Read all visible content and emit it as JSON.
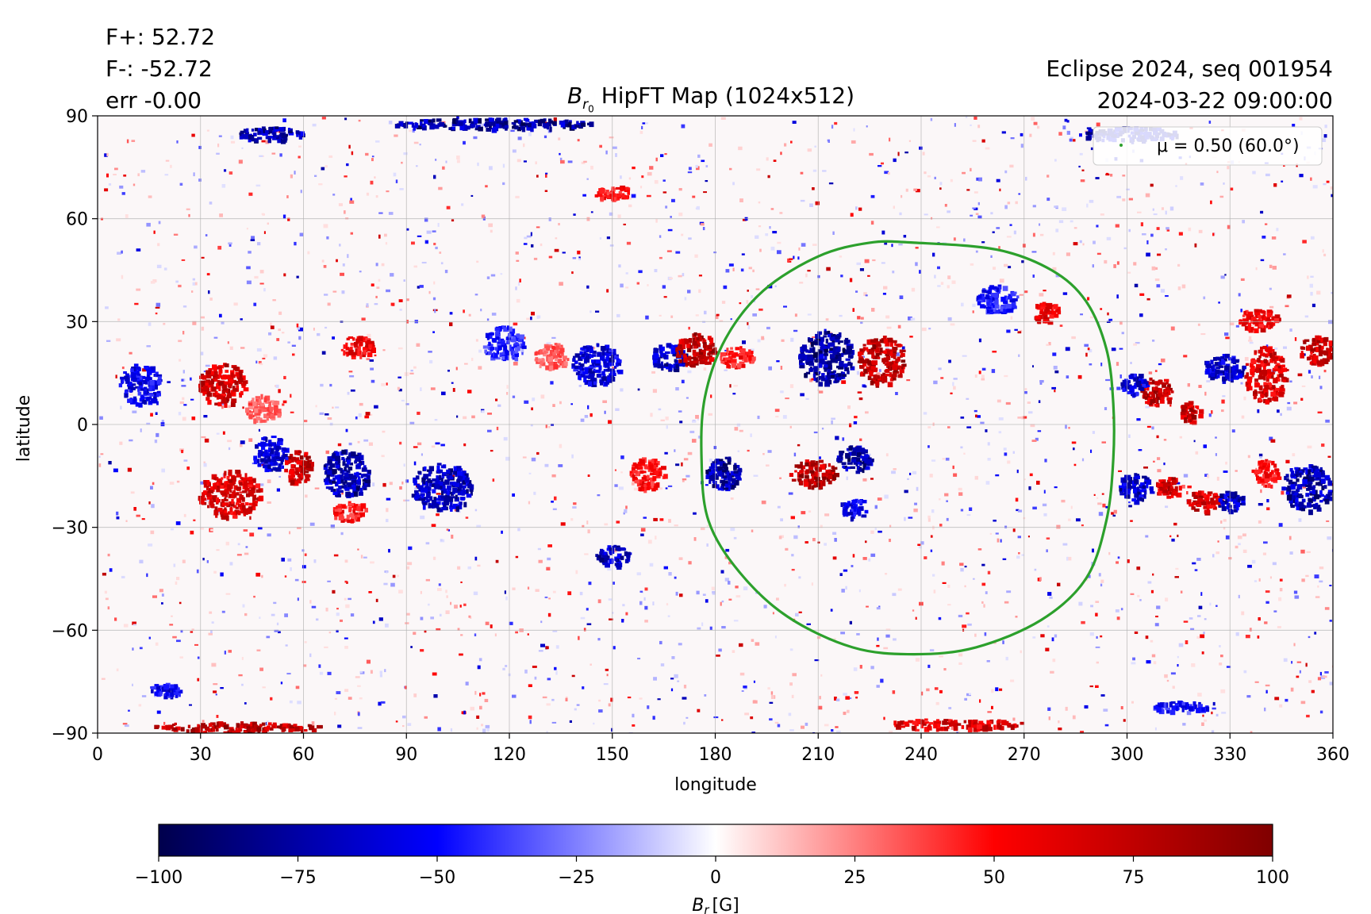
{
  "header": {
    "stats": [
      "F+: 52.72",
      "F-: -52.72",
      "err -0.00"
    ],
    "title_main": "HipFT Map (1024x512)",
    "title_symbol": "B",
    "title_subscript": "r",
    "title_subsubscript": "0",
    "right_line1": "Eclipse 2024, seq 001954",
    "right_line2": "2024-03-22 09:00:00"
  },
  "chart_data": {
    "type": "heatmap",
    "title": "B_r0 HipFT Map (1024x512)",
    "xlabel": "longitude",
    "ylabel": "latitude",
    "xlim": [
      0,
      360
    ],
    "ylim": [
      -90,
      90
    ],
    "xticks": [
      0,
      30,
      60,
      90,
      120,
      150,
      180,
      210,
      240,
      270,
      300,
      330,
      360
    ],
    "yticks": [
      -90,
      -60,
      -30,
      0,
      30,
      60,
      90
    ],
    "grid": true,
    "legend": {
      "position": "top-right",
      "entries": [
        {
          "label": "μ = 0.50 (60.0°)",
          "color": "#2ca02c"
        }
      ]
    },
    "mu_contour": {
      "label": "μ = 0.50 (60.0°)",
      "color": "#2ca02c",
      "points": [
        [
          238,
          53
        ],
        [
          262,
          51
        ],
        [
          278,
          45
        ],
        [
          288,
          36
        ],
        [
          294,
          22
        ],
        [
          296,
          6
        ],
        [
          296,
          -10
        ],
        [
          294,
          -28
        ],
        [
          288,
          -45
        ],
        [
          275,
          -57
        ],
        [
          256,
          -65
        ],
        [
          238,
          -67
        ],
        [
          220,
          -65
        ],
        [
          201,
          -56
        ],
        [
          187,
          -43
        ],
        [
          178,
          -28
        ],
        [
          176,
          -10
        ],
        [
          177,
          8
        ],
        [
          183,
          25
        ],
        [
          194,
          39
        ],
        [
          210,
          49
        ],
        [
          225,
          53
        ],
        [
          238,
          53
        ]
      ]
    },
    "colorbar": {
      "cmap": "seismic",
      "label_symbol": "B",
      "label_subscript": "r",
      "label_unit": "[G]",
      "range": [
        -100,
        100
      ],
      "ticks": [
        -100,
        -75,
        -50,
        -25,
        0,
        25,
        50,
        75,
        100
      ],
      "colors": [
        "#00004c",
        "#0000ff",
        "#ffffff",
        "#ff0000",
        "#800000"
      ]
    },
    "regions": [
      {
        "lon": 36,
        "lat": 12,
        "rlon": 7,
        "rlat": 6,
        "value": 85
      },
      {
        "lon": 12,
        "lat": 12,
        "rlon": 6,
        "rlat": 6,
        "value": -70
      },
      {
        "lon": 48,
        "lat": 5,
        "rlon": 5,
        "rlat": 4,
        "value": 40
      },
      {
        "lon": 38,
        "lat": -20,
        "rlon": 9,
        "rlat": 7,
        "value": 80
      },
      {
        "lon": 58,
        "lat": -12,
        "rlon": 4,
        "rlat": 5,
        "value": 90
      },
      {
        "lon": 50,
        "lat": -8,
        "rlon": 5,
        "rlat": 5,
        "value": -75
      },
      {
        "lon": 72,
        "lat": -14,
        "rlon": 7,
        "rlat": 7,
        "value": -90
      },
      {
        "lon": 73,
        "lat": -25,
        "rlon": 5,
        "rlat": 3,
        "value": 60
      },
      {
        "lon": 75,
        "lat": 23,
        "rlon": 5,
        "rlat": 3,
        "value": 70
      },
      {
        "lon": 100,
        "lat": -18,
        "rlon": 9,
        "rlat": 7,
        "value": -85
      },
      {
        "lon": 118,
        "lat": 24,
        "rlon": 6,
        "rlat": 5,
        "value": -55
      },
      {
        "lon": 145,
        "lat": 18,
        "rlon": 7,
        "rlat": 6,
        "value": -75
      },
      {
        "lon": 132,
        "lat": 20,
        "rlon": 5,
        "rlat": 4,
        "value": 40
      },
      {
        "lon": 150,
        "lat": -38,
        "rlon": 5,
        "rlat": 3,
        "value": -85
      },
      {
        "lon": 160,
        "lat": -14,
        "rlon": 5,
        "rlat": 5,
        "value": 60
      },
      {
        "lon": 166,
        "lat": 20,
        "rlon": 5,
        "rlat": 4,
        "value": -85
      },
      {
        "lon": 174,
        "lat": 22,
        "rlon": 6,
        "rlat": 5,
        "value": 95
      },
      {
        "lon": 186,
        "lat": 20,
        "rlon": 5,
        "rlat": 3,
        "value": 60
      },
      {
        "lon": 182,
        "lat": -14,
        "rlon": 5,
        "rlat": 5,
        "value": -95
      },
      {
        "lon": 212,
        "lat": 20,
        "rlon": 8,
        "rlat": 8,
        "value": -98
      },
      {
        "lon": 228,
        "lat": 19,
        "rlon": 7,
        "rlat": 7,
        "value": 95
      },
      {
        "lon": 208,
        "lat": -14,
        "rlon": 7,
        "rlat": 4,
        "value": 95
      },
      {
        "lon": 220,
        "lat": -10,
        "rlon": 5,
        "rlat": 4,
        "value": -95
      },
      {
        "lon": 220,
        "lat": -24,
        "rlon": 4,
        "rlat": 3,
        "value": -70
      },
      {
        "lon": 262,
        "lat": 37,
        "rlon": 6,
        "rlat": 4,
        "value": -60
      },
      {
        "lon": 276,
        "lat": 33,
        "rlon": 4,
        "rlat": 3,
        "value": 70
      },
      {
        "lon": 308,
        "lat": 10,
        "rlon": 5,
        "rlat": 4,
        "value": 90
      },
      {
        "lon": 302,
        "lat": 12,
        "rlon": 4,
        "rlat": 3,
        "value": -75
      },
      {
        "lon": 318,
        "lat": 4,
        "rlon": 3,
        "rlat": 3,
        "value": 90
      },
      {
        "lon": 328,
        "lat": 17,
        "rlon": 6,
        "rlat": 4,
        "value": -80
      },
      {
        "lon": 340,
        "lat": 15,
        "rlon": 6,
        "rlat": 8,
        "value": 80
      },
      {
        "lon": 338,
        "lat": 31,
        "rlon": 6,
        "rlat": 3,
        "value": 70
      },
      {
        "lon": 355,
        "lat": 22,
        "rlon": 5,
        "rlat": 4,
        "value": 85
      },
      {
        "lon": 302,
        "lat": -18,
        "rlon": 5,
        "rlat": 4,
        "value": -85
      },
      {
        "lon": 312,
        "lat": -18,
        "rlon": 4,
        "rlat": 3,
        "value": 85
      },
      {
        "lon": 322,
        "lat": -22,
        "rlon": 5,
        "rlat": 3,
        "value": 85
      },
      {
        "lon": 330,
        "lat": -22,
        "rlon": 4,
        "rlat": 3,
        "value": -85
      },
      {
        "lon": 352,
        "lat": -18,
        "rlon": 7,
        "rlat": 7,
        "value": -90
      },
      {
        "lon": 340,
        "lat": -14,
        "rlon": 4,
        "rlat": 4,
        "value": 60
      },
      {
        "lon": 50,
        "lat": 85,
        "rlon": 10,
        "rlat": 2,
        "value": -90
      },
      {
        "lon": 115,
        "lat": 88,
        "rlon": 30,
        "rlat": 1.5,
        "value": -95
      },
      {
        "lon": 300,
        "lat": 85,
        "rlon": 15,
        "rlat": 2,
        "value": -85
      },
      {
        "lon": 40,
        "lat": -88,
        "rlon": 25,
        "rlat": 1.5,
        "value": 95
      },
      {
        "lon": 250,
        "lat": -87,
        "rlon": 20,
        "rlat": 1.5,
        "value": 80
      },
      {
        "lon": 20,
        "lat": -77,
        "rlon": 5,
        "rlat": 2,
        "value": -70
      },
      {
        "lon": 315,
        "lat": -82,
        "rlon": 8,
        "rlat": 1.5,
        "value": -60
      },
      {
        "lon": 150,
        "lat": 68,
        "rlon": 6,
        "rlat": 2,
        "value": 60
      }
    ]
  }
}
